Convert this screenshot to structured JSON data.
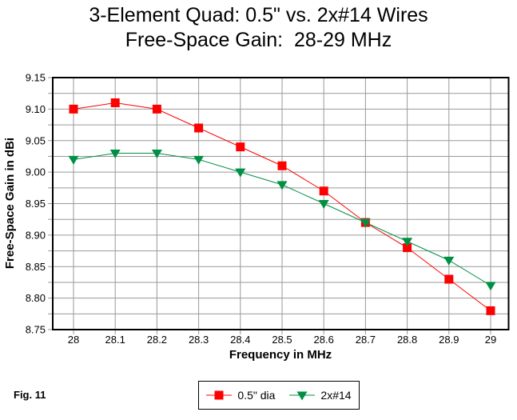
{
  "page": {
    "background": "#FFFFFF"
  },
  "title": {
    "line1": "3-Element Quad: 0.5\" vs. 2x#14 Wires",
    "line2": "Free-Space Gain:  28-29 MHz"
  },
  "figure_label": "Fig. 11",
  "chart_data": {
    "type": "line",
    "title": "3-Element Quad: 0.5\" vs. 2x#14 Wires",
    "subtitle": "Free-Space Gain:  28-29 MHz",
    "xlabel": "Frequency in MHz",
    "ylabel": "Free-Space Gain in dBi",
    "x": [
      28,
      28.1,
      28.2,
      28.3,
      28.4,
      28.5,
      28.6,
      28.7,
      28.8,
      28.9,
      29
    ],
    "series": [
      {
        "name": "0.5\" dia",
        "marker": "square",
        "color": "#FF0000",
        "values": [
          9.1,
          9.11,
          9.1,
          9.07,
          9.04,
          9.01,
          8.97,
          8.92,
          8.88,
          8.83,
          8.78
        ]
      },
      {
        "name": "2x#14",
        "marker": "triangle-down",
        "color": "#009044",
        "values": [
          9.02,
          9.03,
          9.03,
          9.02,
          9.0,
          8.98,
          8.95,
          8.92,
          8.89,
          8.86,
          8.82
        ]
      }
    ],
    "xlim": [
      28,
      29
    ],
    "ylim": [
      8.75,
      9.15
    ],
    "x_tick_step": 0.1,
    "y_tick_step": 0.05,
    "y_grid_step": 0.025,
    "grid": true,
    "grid_color": "#999999",
    "axis_color": "#000000",
    "tick_label_color": "#000000",
    "legend_position": "bottom-center"
  }
}
